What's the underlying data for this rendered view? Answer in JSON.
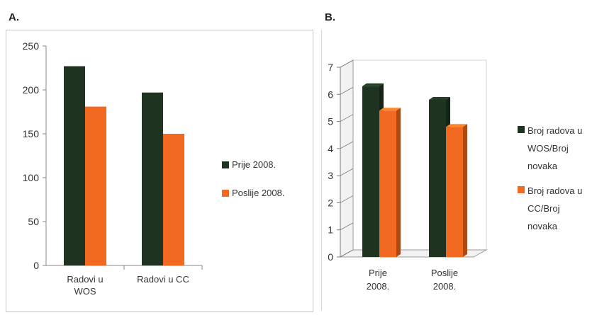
{
  "panels": [
    {
      "label": "A."
    },
    {
      "label": "B."
    }
  ],
  "chart_data": [
    {
      "type": "bar",
      "panel": "A.",
      "categories": [
        "Radovi u\nWOS",
        "Radovi u CC"
      ],
      "series": [
        {
          "name": "Prije 2008.",
          "values": [
            227,
            197
          ],
          "color": "#1e3320"
        },
        {
          "name": "Poslije 2008.",
          "values": [
            181,
            150
          ],
          "color": "#f26a21"
        }
      ],
      "ylim": [
        0,
        250
      ],
      "yticks": [
        0,
        50,
        100,
        150,
        200,
        250
      ],
      "grid": false,
      "legend": "right"
    },
    {
      "type": "bar",
      "panel": "B.",
      "style": "3d",
      "categories": [
        "Prije\n2008.",
        "Poslije\n2008."
      ],
      "series": [
        {
          "name": "Broj radova u\nWOS/Broj\nnovaka",
          "values": [
            6.3,
            5.8
          ],
          "color": "#1e3320"
        },
        {
          "name": "Broj radova u\nCC/Broj\nnovaka",
          "values": [
            5.4,
            4.8
          ],
          "color": "#f26a21"
        }
      ],
      "ylim": [
        0,
        7
      ],
      "yticks": [
        0,
        1,
        2,
        3,
        4,
        5,
        6,
        7
      ],
      "grid": false,
      "legend": "right"
    }
  ]
}
